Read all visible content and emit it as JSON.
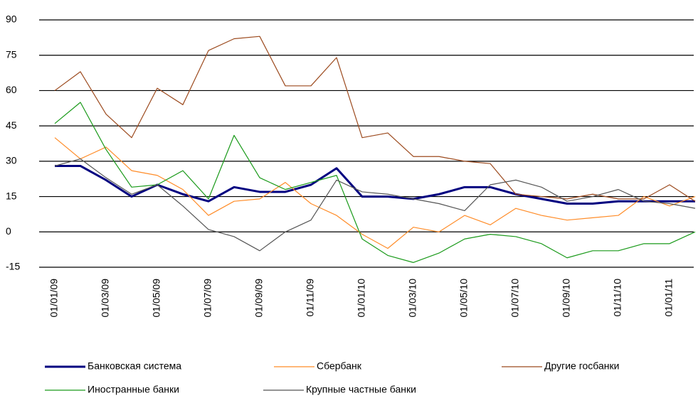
{
  "chart_data": {
    "type": "line",
    "categories": [
      "01/01/09",
      null,
      "01/03/09",
      null,
      "01/05/09",
      null,
      "01/07/09",
      null,
      "01/09/09",
      null,
      "01/11/09",
      null,
      "01/01/10",
      null,
      "01/03/10",
      null,
      "01/05/10",
      null,
      "01/07/10",
      null,
      "01/09/10",
      null,
      "01/11/10",
      null,
      "01/01/11",
      null
    ],
    "series": [
      {
        "name": "Банковская система",
        "color": "#000080",
        "width": 3,
        "values": [
          28,
          28,
          22,
          15,
          20,
          16,
          13,
          19,
          17,
          17,
          20,
          27,
          15,
          15,
          14,
          16,
          19,
          19,
          16,
          14,
          12,
          12,
          13,
          13,
          13,
          13
        ]
      },
      {
        "name": "Сбербанк",
        "color": "#ff8c28",
        "width": 1.2,
        "values": [
          40,
          31,
          36,
          26,
          24,
          18,
          7,
          13,
          14,
          21,
          12,
          7,
          -1,
          -7,
          2,
          0,
          7,
          3,
          10,
          7,
          5,
          6,
          7,
          15,
          11,
          15
        ]
      },
      {
        "name": "Другие госбанки",
        "color": "#9c4a1e",
        "width": 1.2,
        "values": [
          60,
          68,
          50,
          40,
          61,
          54,
          77,
          82,
          83,
          62,
          62,
          74,
          40,
          42,
          32,
          32,
          30,
          29,
          16,
          15,
          14,
          16,
          14,
          14,
          20,
          13
        ]
      },
      {
        "name": "Иностранные банки",
        "color": "#1a9a1a",
        "width": 1.2,
        "values": [
          46,
          55,
          35,
          19,
          20,
          26,
          14,
          41,
          23,
          18,
          21,
          24,
          -3,
          -10,
          -13,
          -9,
          -3,
          -1,
          -2,
          -5,
          -11,
          -8,
          -8,
          -5,
          -5,
          0
        ]
      },
      {
        "name": "Крупные частные банки",
        "color": "#555555",
        "width": 1.2,
        "values": [
          28,
          31,
          23,
          16,
          20,
          11,
          1,
          -2,
          -8,
          0,
          5,
          22,
          17,
          16,
          14,
          12,
          9,
          20,
          22,
          19,
          13,
          15,
          18,
          13,
          12,
          10
        ]
      }
    ],
    "ylim": [
      -15,
      90
    ],
    "yticks": [
      -15,
      0,
      15,
      30,
      45,
      60,
      75,
      90
    ],
    "grid": true,
    "legend": "bottom"
  }
}
